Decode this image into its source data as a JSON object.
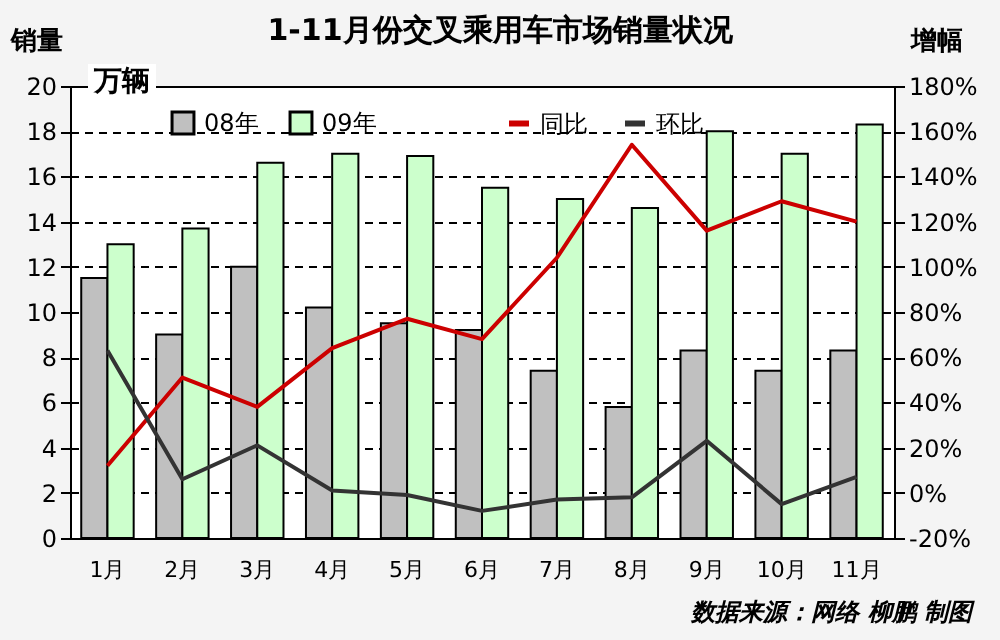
{
  "chart_data": {
    "type": "bar",
    "title": "1-11月份交叉乘用车市场销量状况",
    "ylabel": "销量",
    "y2label": "增幅",
    "annotations": [
      "万辆",
      "数据来源：网络 柳鹏 制图"
    ],
    "categories": [
      "1月",
      "2月",
      "3月",
      "4月",
      "5月",
      "6月",
      "7月",
      "8月",
      "9月",
      "10月",
      "11月"
    ],
    "series": [
      {
        "name": "08年",
        "color": "#c0c0c0",
        "values": [
          11.5,
          9.0,
          12.0,
          10.2,
          9.5,
          9.2,
          7.4,
          5.8,
          8.3,
          7.4,
          8.3
        ]
      },
      {
        "name": "09年",
        "color": "#ccffcc",
        "values": [
          13.0,
          13.7,
          16.6,
          17.0,
          16.9,
          15.5,
          15.0,
          14.6,
          18.0,
          17.0,
          18.3
        ]
      },
      {
        "name": "同比",
        "type": "line",
        "axis": "y2",
        "color": "#cc0000",
        "values": [
          12,
          51,
          38,
          64,
          77,
          68,
          104,
          154,
          116,
          129,
          120
        ]
      },
      {
        "name": "环比",
        "type": "line",
        "axis": "y2",
        "color": "#333333",
        "values": [
          63,
          6,
          21,
          1,
          -1,
          -8,
          -3,
          -2,
          23,
          -5,
          7
        ]
      }
    ],
    "ylim": [
      0,
      20
    ],
    "yticks": [
      0,
      2,
      4,
      6,
      8,
      10,
      12,
      14,
      16,
      18,
      20
    ],
    "y2lim": [
      -20,
      180
    ],
    "y2ticks": [
      {
        "value": -20,
        "label": "-20%"
      },
      {
        "value": 0,
        "label": "0%"
      },
      {
        "value": 20,
        "label": "20%"
      },
      {
        "value": 40,
        "label": "40%"
      },
      {
        "value": 60,
        "label": "60%"
      },
      {
        "value": 80,
        "label": "80%"
      },
      {
        "value": 100,
        "label": "100%"
      },
      {
        "value": 120,
        "label": "120%"
      },
      {
        "value": 140,
        "label": "140%"
      },
      {
        "value": 160,
        "label": "160%"
      },
      {
        "value": 180,
        "label": "180%"
      }
    ],
    "grid": "y",
    "legend": "top",
    "marker": "none",
    "line_style": "solid"
  }
}
